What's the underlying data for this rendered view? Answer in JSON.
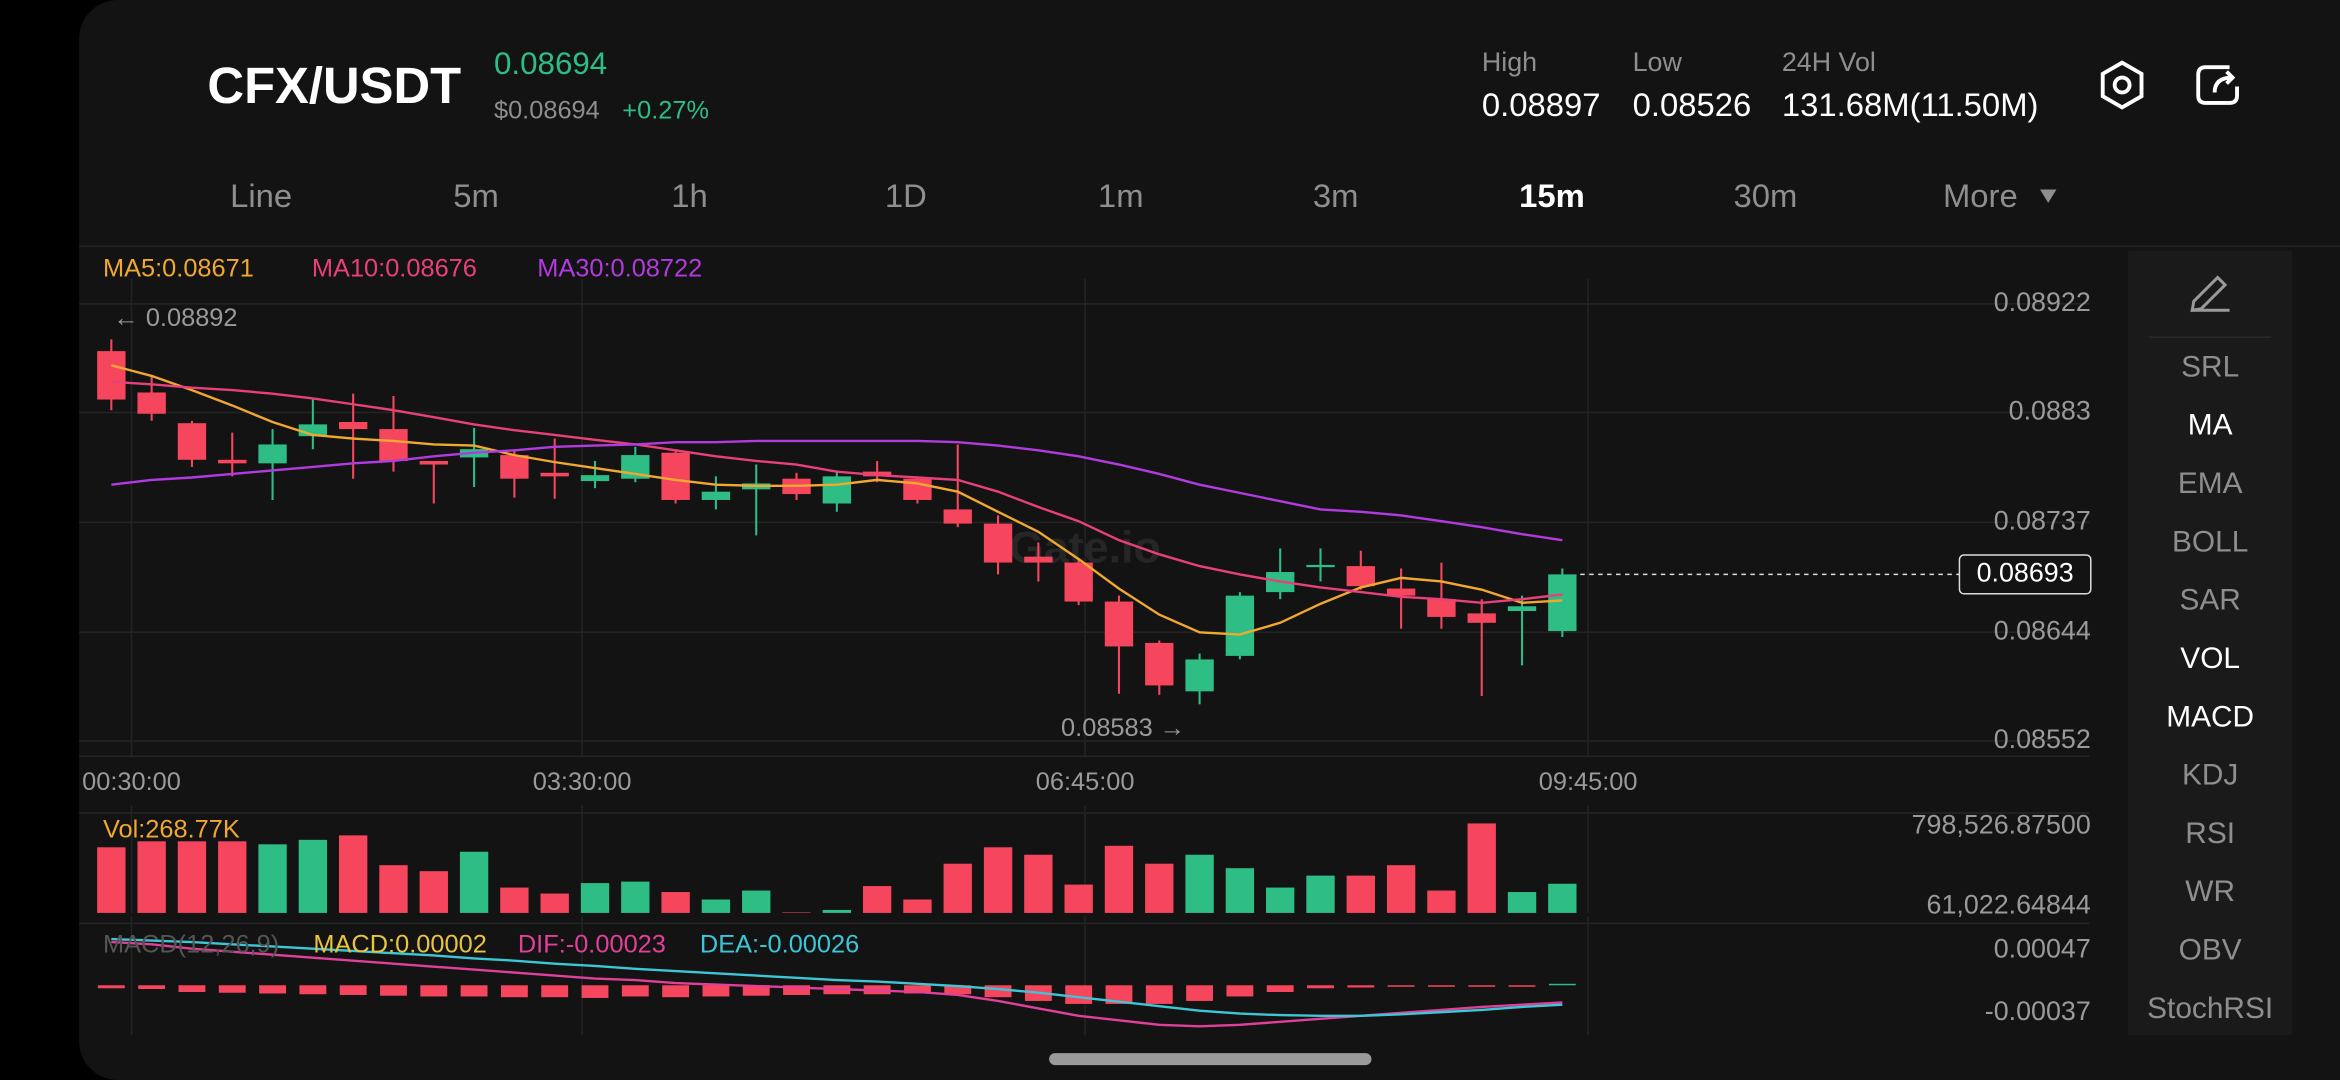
{
  "header": {
    "pair": "CFX/USDT",
    "price": "0.08694",
    "usd_price": "$0.08694",
    "change": "+0.27%",
    "stats": [
      {
        "label": "High",
        "value": "0.08897"
      },
      {
        "label": "Low",
        "value": "0.08526"
      },
      {
        "label": "24H Vol",
        "value": "131.68M(11.50M)"
      }
    ]
  },
  "intervals": [
    {
      "label": "Line"
    },
    {
      "label": "5m"
    },
    {
      "label": "1h"
    },
    {
      "label": "1D"
    },
    {
      "label": "1m"
    },
    {
      "label": "3m"
    },
    {
      "label": "15m",
      "selected": true
    },
    {
      "label": "30m"
    },
    {
      "label": "More"
    }
  ],
  "indicators": [
    {
      "label": "SRL"
    },
    {
      "label": "MA",
      "selected": true
    },
    {
      "label": "EMA"
    },
    {
      "label": "BOLL"
    },
    {
      "label": "SAR"
    },
    {
      "label": "VOL",
      "selected": true
    },
    {
      "label": "MACD",
      "selected": true
    },
    {
      "label": "KDJ"
    },
    {
      "label": "RSI"
    },
    {
      "label": "WR"
    },
    {
      "label": "OBV"
    },
    {
      "label": "StochRSI"
    }
  ],
  "watermark": "Gate.io",
  "chart_data": [
    {
      "type": "candlestick",
      "up_color": "#2ebd85",
      "down_color": "#f6465d",
      "grid": true,
      "xlim": [
        -0.8,
        49
      ],
      "xticks": [
        {
          "value": 0.5,
          "label": "00:30:00"
        },
        {
          "value": 11.68,
          "label": "03:30:00"
        },
        {
          "value": 24.16,
          "label": "06:45:00"
        },
        {
          "value": 36.64,
          "label": "09:45:00"
        }
      ],
      "ylim": [
        0.08539,
        0.08933
      ],
      "yticks": [
        0.08922,
        0.0883,
        0.08737,
        0.08644,
        0.08552
      ],
      "open": [
        0.08882,
        0.08847,
        0.08821,
        0.0879,
        0.08787,
        0.0881,
        0.08822,
        0.08816,
        0.08789,
        0.08792,
        0.08794,
        0.08779,
        0.08772,
        0.08774,
        0.08796,
        0.08756,
        0.08765,
        0.08774,
        0.08753,
        0.0878,
        0.08774,
        0.08748,
        0.08736,
        0.08708,
        0.08703,
        0.0867,
        0.08635,
        0.08594,
        0.08624,
        0.08678,
        0.087,
        0.087,
        0.08681,
        0.08672,
        0.0866,
        0.08662,
        0.08645
      ],
      "high": [
        0.08892,
        0.08861,
        0.08823,
        0.08813,
        0.08816,
        0.08841,
        0.08846,
        0.08844,
        0.08789,
        0.08817,
        0.08799,
        0.08808,
        0.08789,
        0.08801,
        0.08799,
        0.08776,
        0.08786,
        0.08779,
        0.08781,
        0.08789,
        0.08776,
        0.08803,
        0.08743,
        0.0872,
        0.08705,
        0.08675,
        0.08637,
        0.08626,
        0.08678,
        0.08715,
        0.08715,
        0.08713,
        0.08698,
        0.08703,
        0.08672,
        0.08675,
        0.08698
      ],
      "low": [
        0.08832,
        0.08823,
        0.08784,
        0.08776,
        0.08756,
        0.08799,
        0.08774,
        0.0878,
        0.08753,
        0.08767,
        0.08758,
        0.08757,
        0.08766,
        0.08771,
        0.08753,
        0.08748,
        0.08726,
        0.08756,
        0.08746,
        0.08771,
        0.08753,
        0.08733,
        0.08693,
        0.08687,
        0.08667,
        0.08592,
        0.08591,
        0.08583,
        0.08621,
        0.08672,
        0.08687,
        0.0868,
        0.08647,
        0.08647,
        0.0859,
        0.08616,
        0.0864
      ],
      "close": [
        0.08841,
        0.08829,
        0.0879,
        0.08787,
        0.08803,
        0.0882,
        0.08816,
        0.08789,
        0.08786,
        0.08799,
        0.08774,
        0.08776,
        0.08777,
        0.08794,
        0.08756,
        0.08763,
        0.0877,
        0.08761,
        0.08776,
        0.08776,
        0.08756,
        0.08736,
        0.08703,
        0.08703,
        0.0867,
        0.08632,
        0.08599,
        0.08621,
        0.08675,
        0.08695,
        0.08701,
        0.08683,
        0.08675,
        0.08657,
        0.08652,
        0.08666,
        0.08693
      ],
      "series": [
        {
          "name": "MA5:0.08671",
          "color": "#f0a830",
          "values": [
            0.0887,
            0.08861,
            0.08849,
            0.08836,
            0.08822,
            0.08811,
            0.08808,
            0.08806,
            0.08803,
            0.08802,
            0.08794,
            0.08788,
            0.08783,
            0.08778,
            0.08773,
            0.08769,
            0.08768,
            0.08768,
            0.08769,
            0.08773,
            0.0877,
            0.08763,
            0.08746,
            0.08729,
            0.08706,
            0.08681,
            0.08659,
            0.08644,
            0.08642,
            0.08652,
            0.08668,
            0.08682,
            0.0869,
            0.08687,
            0.0868,
            0.08669,
            0.08671
          ]
        },
        {
          "name": "MA10:0.08676",
          "color": "#e8407a",
          "values": [
            0.08856,
            0.08854,
            0.08851,
            0.08849,
            0.08846,
            0.08842,
            0.08837,
            0.08832,
            0.08826,
            0.0882,
            0.08815,
            0.08811,
            0.08807,
            0.08803,
            0.08798,
            0.08793,
            0.08789,
            0.08786,
            0.0878,
            0.08777,
            0.08775,
            0.08773,
            0.08763,
            0.0875,
            0.08738,
            0.08722,
            0.0871,
            0.087,
            0.08693,
            0.08687,
            0.08682,
            0.08678,
            0.08674,
            0.08672,
            0.08669,
            0.08672,
            0.08676
          ]
        },
        {
          "name": "MA30:0.08722",
          "color": "#b23be0",
          "values": [
            0.08769,
            0.08773,
            0.08775,
            0.08778,
            0.08781,
            0.08784,
            0.08787,
            0.08789,
            0.08793,
            0.08796,
            0.08798,
            0.08801,
            0.08802,
            0.08803,
            0.08805,
            0.08805,
            0.08806,
            0.08806,
            0.08806,
            0.08806,
            0.08806,
            0.08805,
            0.08802,
            0.08798,
            0.08793,
            0.08786,
            0.08778,
            0.08769,
            0.08762,
            0.08755,
            0.08748,
            0.08746,
            0.08743,
            0.08738,
            0.08733,
            0.08727,
            0.08722
          ]
        }
      ],
      "annotations": [
        {
          "text": "← 0.08892"
        },
        {
          "text": "0.08583 →"
        }
      ],
      "last_price": 0.08693
    },
    {
      "type": "bar",
      "xlim": [
        -0.8,
        49
      ],
      "ylim": [
        0,
        880000
      ],
      "yticks": [
        {
          "value": 798526.875,
          "label": "798,526.87500"
        },
        {
          "value": 61022.64844,
          "label": "61,022.64844"
        }
      ],
      "series": [
        {
          "name": "Vol:268.77K",
          "color": "#f0a830",
          "values": [
            605000,
            660000,
            660000,
            660000,
            632500,
            673750,
            715000,
            440000,
            385000,
            563750,
            233750,
            178750,
            275000,
            288750,
            192500,
            123750,
            206250,
            5000,
            27500,
            247500,
            123750,
            453750,
            605000,
            536250,
            261250,
            618750,
            453750,
            536250,
            412500,
            233750,
            343750,
            343750,
            440000,
            206250,
            825000,
            192500,
            268770
          ]
        }
      ]
    },
    {
      "type": "macd",
      "title": "MACD(12,26,9)",
      "xlim": [
        -0.8,
        49
      ],
      "ylim": [
        -0.00067,
        0.00077
      ],
      "yticks": [
        0.00047,
        -0.00037
      ],
      "series": [
        {
          "name": "MACD:0.00002",
          "color": "#e8c33f",
          "values": [
            -4e-05,
            -5e-05,
            -9e-05,
            -0.0001,
            -0.00011,
            -0.00012,
            -0.00013,
            -0.00014,
            -0.00015,
            -0.00015,
            -0.00016,
            -0.00016,
            -0.00017,
            -0.00015,
            -0.00016,
            -0.00015,
            -0.00014,
            -0.00013,
            -0.00012,
            -0.00012,
            -0.00011,
            -0.00012,
            -0.00016,
            -0.00021,
            -0.00025,
            -0.00025,
            -0.00025,
            -0.00021,
            -0.00015,
            -9e-05,
            -4e-05,
            -3e-05,
            -2e-05,
            -2e-05,
            -1e-05,
            -1e-05,
            2e-05
          ]
        },
        {
          "name": "DIF:-0.00023",
          "color": "#e0409a",
          "values": [
            0.00058,
            0.00055,
            0.00049,
            0.00045,
            0.00041,
            0.00037,
            0.00033,
            0.00029,
            0.00025,
            0.00021,
            0.00017,
            0.00013,
            9e-05,
            7e-05,
            3e-05,
            1e-05,
            -1e-05,
            -3e-05,
            -5e-05,
            -7e-05,
            -9e-05,
            -0.00013,
            -0.00021,
            -0.00031,
            -0.00041,
            -0.00047,
            -0.00053,
            -0.00055,
            -0.00053,
            -0.00049,
            -0.00045,
            -0.00041,
            -0.00037,
            -0.00033,
            -0.00029,
            -0.00026,
            -0.00023
          ]
        },
        {
          "name": "DEA:-0.00026",
          "color": "#3cc6d6",
          "values": [
            0.00062,
            0.0006,
            0.00058,
            0.00055,
            0.00052,
            0.00049,
            0.00046,
            0.00043,
            0.0004,
            0.00036,
            0.00033,
            0.00029,
            0.00026,
            0.00022,
            0.00019,
            0.00016,
            0.00013,
            0.0001,
            7e-05,
            5e-05,
            2e-05,
            -1e-05,
            -5e-05,
            -0.0001,
            -0.00016,
            -0.00022,
            -0.00028,
            -0.00034,
            -0.00038,
            -0.0004,
            -0.00041,
            -0.00041,
            -0.00039,
            -0.00036,
            -0.00033,
            -0.00029,
            -0.00026
          ]
        }
      ]
    }
  ]
}
